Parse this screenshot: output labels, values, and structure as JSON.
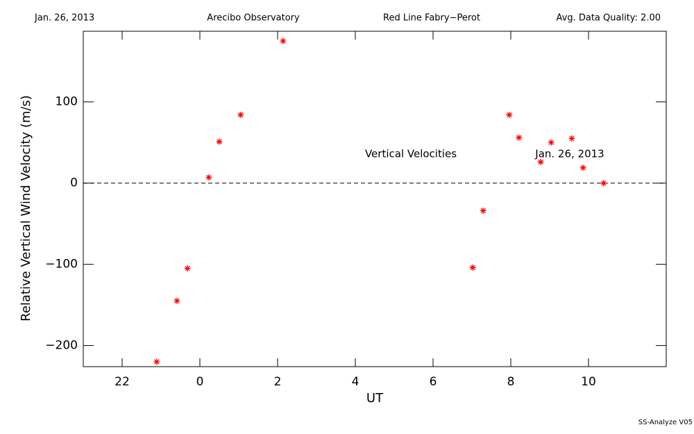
{
  "chart_data": {
    "type": "scatter",
    "header": [
      "Jan. 26, 2013",
      "Arecibo Observatory",
      "Red Line Fabry−Perot",
      "Avg. Data Quality: 2.00"
    ],
    "annotations": [
      "Vertical Velocities",
      "Jan. 26, 2013"
    ],
    "footer": "SS-Analyze V05",
    "x_label": "UT",
    "y_label": "Relative Vertical Wind Velocity (m/s)",
    "xlim": [
      21,
      36
    ],
    "xticks": [
      22,
      {
        "value": 24,
        "label": "0"
      },
      {
        "value": 26,
        "label": "2"
      },
      {
        "value": 28,
        "label": "4"
      },
      {
        "value": 30,
        "label": "6"
      },
      {
        "value": 32,
        "label": "8"
      },
      {
        "value": 34,
        "label": "10"
      }
    ],
    "ylim": [
      -226,
      187
    ],
    "yticks": [
      {
        "value": -200,
        "label": "−200"
      },
      {
        "value": -100,
        "label": "−100"
      },
      0,
      100
    ],
    "zero_line": true,
    "series": [
      {
        "name": "Vertical Velocities",
        "color": "#ff0000",
        "x": [
          22.89,
          23.41,
          23.68,
          24.23,
          24.5,
          25.05,
          26.14,
          31.02,
          31.29,
          31.96,
          32.21,
          32.77,
          33.04,
          33.57,
          33.86,
          34.39
        ],
        "values": [
          -220,
          -145,
          -105,
          7,
          51,
          84,
          175,
          -104,
          -34,
          84,
          56,
          26,
          50,
          55,
          19,
          0
        ]
      }
    ]
  }
}
